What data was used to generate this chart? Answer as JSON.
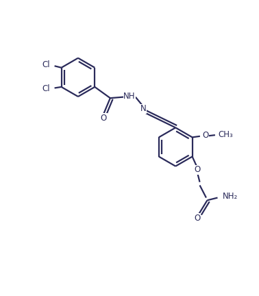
{
  "bg_color": "#ffffff",
  "line_color": "#2a2a5a",
  "line_width": 1.6,
  "font_size": 8.5,
  "figsize": [
    3.78,
    4.32
  ],
  "dpi": 100,
  "xlim": [
    -1,
    11
  ],
  "ylim": [
    -1,
    12
  ]
}
